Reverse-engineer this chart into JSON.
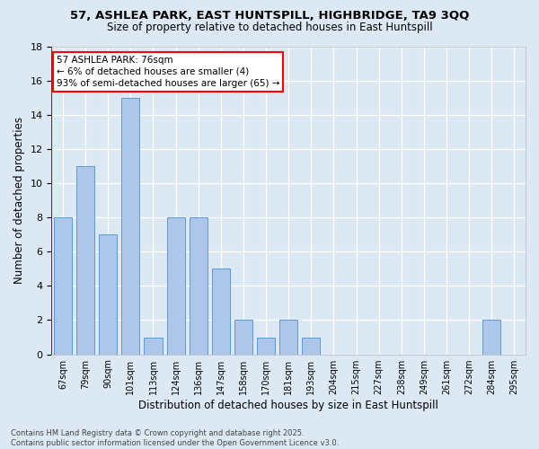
{
  "title1": "57, ASHLEA PARK, EAST HUNTSPILL, HIGHBRIDGE, TA9 3QQ",
  "title2": "Size of property relative to detached houses in East Huntspill",
  "xlabel": "Distribution of detached houses by size in East Huntspill",
  "ylabel": "Number of detached properties",
  "categories": [
    "67sqm",
    "79sqm",
    "90sqm",
    "101sqm",
    "113sqm",
    "124sqm",
    "136sqm",
    "147sqm",
    "158sqm",
    "170sqm",
    "181sqm",
    "193sqm",
    "204sqm",
    "215sqm",
    "227sqm",
    "238sqm",
    "249sqm",
    "261sqm",
    "272sqm",
    "284sqm",
    "295sqm"
  ],
  "values": [
    8,
    11,
    7,
    15,
    1,
    8,
    8,
    5,
    2,
    1,
    2,
    1,
    0,
    0,
    0,
    0,
    0,
    0,
    0,
    2,
    0
  ],
  "bar_color": "#aec6e8",
  "bar_edge_color": "#5b9bd5",
  "annotation_line1": "57 ASHLEA PARK: 76sqm",
  "annotation_line2": "← 6% of detached houses are smaller (4)",
  "annotation_line3": "93% of semi-detached houses are larger (65) →",
  "vline_color": "#cc0000",
  "background_color": "#dce9f5",
  "footer1": "Contains HM Land Registry data © Crown copyright and database right 2025.",
  "footer2": "Contains public sector information licensed under the Open Government Licence v3.0.",
  "ylim": [
    0,
    18
  ],
  "yticks": [
    0,
    2,
    4,
    6,
    8,
    10,
    12,
    14,
    16,
    18
  ]
}
